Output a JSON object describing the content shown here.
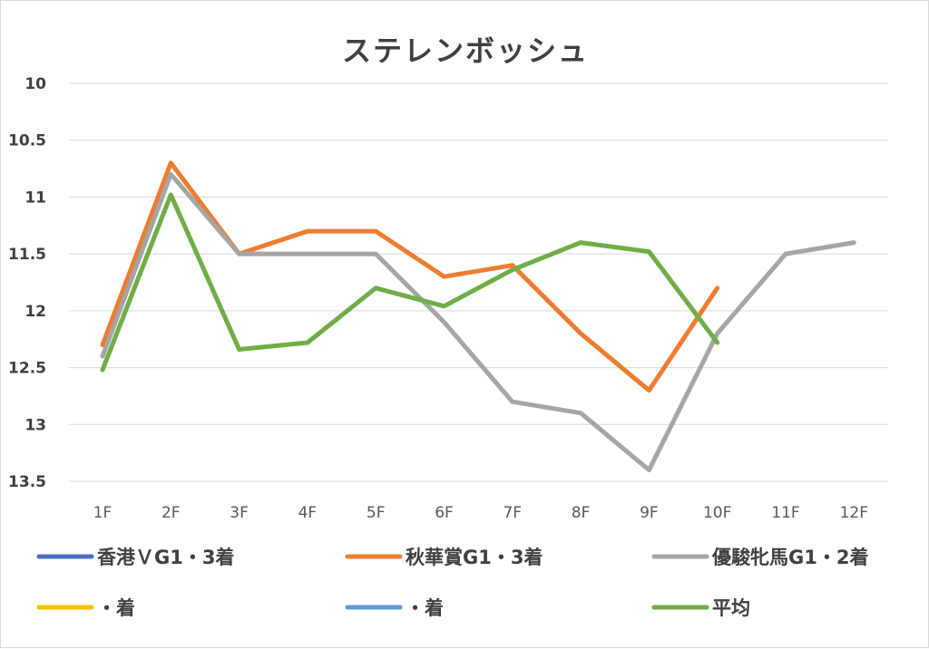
{
  "chart_data": {
    "type": "line",
    "title": "ステレンボッシュ",
    "xlabel": "",
    "ylabel": "",
    "categories": [
      "1F",
      "2F",
      "3F",
      "4F",
      "5F",
      "6F",
      "7F",
      "8F",
      "9F",
      "10F",
      "11F",
      "12F"
    ],
    "y_tick_labels": [
      "10",
      "10.5",
      "11",
      "11.5",
      "12",
      "12.5",
      "13",
      "13.5"
    ],
    "y_ticks": [
      10,
      10.5,
      11,
      11.5,
      12,
      12.5,
      13,
      13.5
    ],
    "ylim": [
      10,
      13.5
    ],
    "y_reversed": true,
    "grid": true,
    "legend_position": "bottom",
    "series": [
      {
        "name": "香港ＶG1・3着",
        "color": "#4472C4",
        "values": [
          null,
          null,
          null,
          null,
          null,
          null,
          null,
          null,
          null,
          null,
          null,
          null
        ]
      },
      {
        "name": "秋華賞G1・3着",
        "color": "#ED7D31",
        "values": [
          12.3,
          10.7,
          11.5,
          11.3,
          11.3,
          11.7,
          11.6,
          12.2,
          12.7,
          11.8,
          null,
          null
        ]
      },
      {
        "name": "優駿牝馬G1・2着",
        "color": "#A5A5A5",
        "values": [
          12.4,
          10.8,
          11.5,
          11.5,
          11.5,
          12.1,
          12.8,
          12.9,
          13.4,
          12.2,
          11.5,
          11.4
        ]
      },
      {
        "name": "・着",
        "color": "#FFC000",
        "values": [
          null,
          null,
          null,
          null,
          null,
          null,
          null,
          null,
          null,
          null,
          null,
          null
        ]
      },
      {
        "name": "・着",
        "color": "#5B9BD5",
        "values": [
          null,
          null,
          null,
          null,
          null,
          null,
          null,
          null,
          null,
          null,
          null,
          null
        ]
      },
      {
        "name": "平均",
        "color": "#70AD47",
        "values": [
          12.52,
          10.98,
          12.34,
          12.28,
          11.8,
          11.96,
          11.64,
          11.4,
          11.48,
          12.28,
          null,
          null
        ]
      }
    ]
  }
}
